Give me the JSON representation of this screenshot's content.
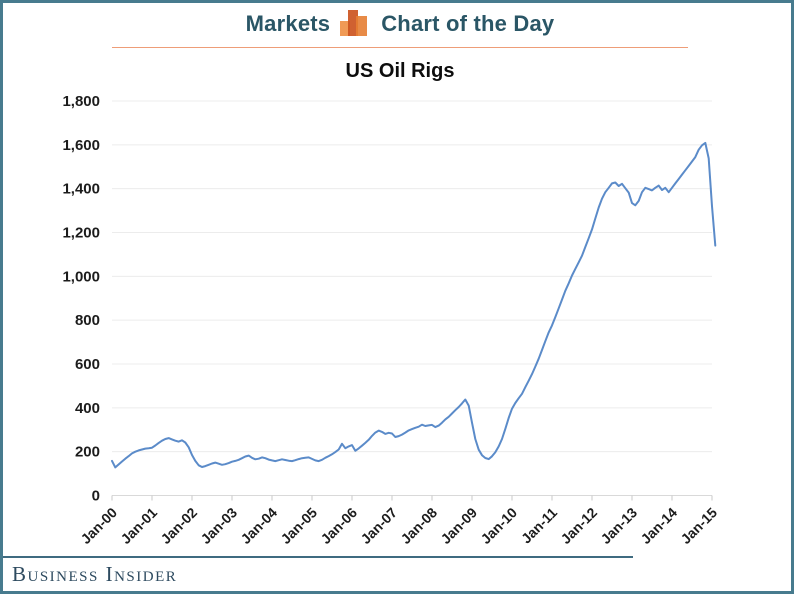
{
  "header": {
    "left_label": "Markets",
    "right_label": "Chart of the Day",
    "icon": "bar-chart-icon"
  },
  "footer": {
    "brand": "Business Insider"
  },
  "colors": {
    "frame": "#477b8e",
    "header_text": "#2a5666",
    "header_rule_orange": "#ee9d78",
    "icon_orange_light": "#f09a55",
    "icon_orange_dark": "#cc5420",
    "icon_orange_mid": "#e67e33",
    "line": "#5b8bc9",
    "gridline": "#ececec",
    "axis_baseline": "#d9d9d9",
    "tick": "#c8c8c8",
    "axis_text": "#1c1c1c",
    "footer_text": "#2d4a5f"
  },
  "chart_data": {
    "type": "line",
    "title": "US Oil Rigs",
    "xlabel": "",
    "ylabel": "",
    "ylim": [
      0,
      1800
    ],
    "ytick_step": 200,
    "grid": "horizontal",
    "legend": "none",
    "x_tick_labels": [
      "Jan-00",
      "Jan-01",
      "Jan-02",
      "Jan-03",
      "Jan-04",
      "Jan-05",
      "Jan-06",
      "Jan-07",
      "Jan-08",
      "Jan-09",
      "Jan-10",
      "Jan-11",
      "Jan-12",
      "Jan-13",
      "Jan-14",
      "Jan-15"
    ],
    "y_tick_labels": [
      "0",
      "200",
      "400",
      "600",
      "800",
      "1,000",
      "1,200",
      "1,400",
      "1,600",
      "1,800"
    ],
    "x_start": "Jan-2000",
    "x_frequency": "monthly",
    "series": [
      {
        "name": "US Oil Rigs",
        "values": [
          158,
          128,
          142,
          155,
          168,
          180,
          192,
          200,
          206,
          210,
          214,
          216,
          218,
          228,
          240,
          250,
          258,
          262,
          256,
          250,
          246,
          252,
          242,
          220,
          185,
          158,
          138,
          130,
          134,
          140,
          146,
          150,
          145,
          140,
          143,
          148,
          154,
          158,
          163,
          170,
          178,
          182,
          172,
          165,
          168,
          174,
          170,
          164,
          160,
          157,
          161,
          165,
          162,
          159,
          157,
          161,
          166,
          170,
          172,
          174,
          167,
          160,
          157,
          163,
          172,
          180,
          188,
          198,
          210,
          236,
          216,
          224,
          230,
          204,
          215,
          227,
          240,
          254,
          272,
          287,
          296,
          290,
          281,
          286,
          283,
          267,
          271,
          278,
          287,
          297,
          303,
          309,
          314,
          323,
          317,
          320,
          322,
          312,
          319,
          332,
          347,
          359,
          374,
          389,
          404,
          420,
          438,
          410,
          332,
          258,
          209,
          184,
          171,
          166,
          179,
          197,
          224,
          258,
          304,
          354,
          396,
          422,
          444,
          464,
          494,
          524,
          554,
          588,
          624,
          664,
          704,
          744,
          776,
          814,
          854,
          894,
          934,
          968,
          1004,
          1034,
          1064,
          1094,
          1134,
          1174,
          1214,
          1264,
          1314,
          1354,
          1384,
          1404,
          1424,
          1428,
          1412,
          1422,
          1402,
          1382,
          1334,
          1324,
          1344,
          1384,
          1404,
          1398,
          1392,
          1404,
          1414,
          1394,
          1404,
          1384,
          1404,
          1424,
          1444,
          1464,
          1484,
          1504,
          1524,
          1544,
          1578,
          1598,
          1609,
          1538,
          1320,
          1140
        ]
      }
    ],
    "annotations": {
      "peak_value": 1609,
      "end_value": 1140
    }
  }
}
